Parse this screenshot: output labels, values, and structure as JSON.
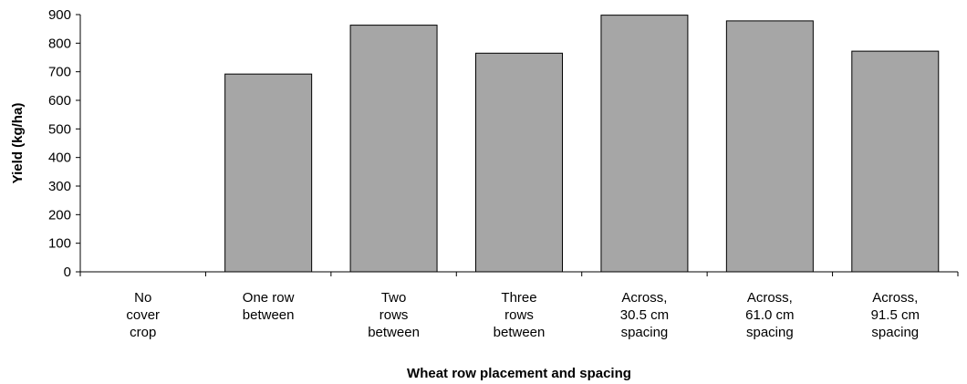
{
  "chart_data": {
    "type": "bar",
    "categories": [
      [
        "No",
        "cover",
        "crop"
      ],
      [
        "One row",
        "between"
      ],
      [
        "Two",
        "rows",
        "between"
      ],
      [
        "Three",
        "rows",
        "between"
      ],
      [
        "Across,",
        "30.5 cm",
        "spacing"
      ],
      [
        "Across,",
        "61.0 cm",
        "spacing"
      ],
      [
        "Across,",
        "91.5 cm",
        "spacing"
      ]
    ],
    "values": [
      0,
      692,
      863,
      765,
      898,
      878,
      772
    ],
    "xlabel": "Wheat row placement and spacing",
    "ylabel": "Yield (kg/ha)",
    "ylim": [
      0,
      900
    ],
    "yticks": [
      0,
      100,
      200,
      300,
      400,
      500,
      600,
      700,
      800,
      900
    ],
    "grid": false,
    "colors": {
      "bar": "#a6a6a6",
      "outline": "#000000"
    }
  }
}
